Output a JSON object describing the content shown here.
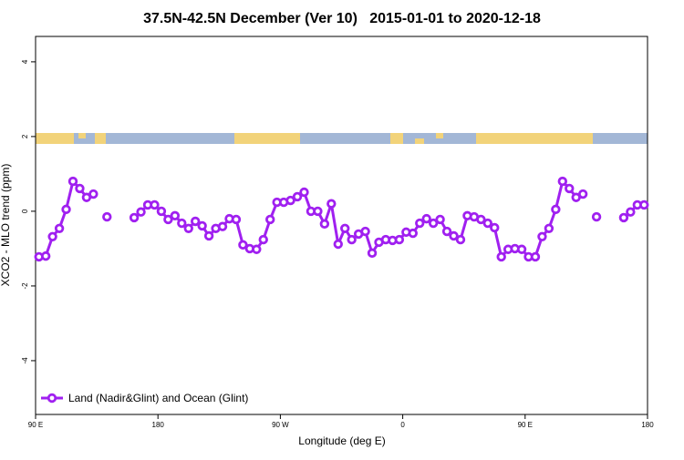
{
  "chart_data": {
    "type": "line",
    "title": "37.5N-42.5N December (Ver 10)   2015-01-01 to 2020-12-18",
    "x_label": "Longitude (deg E)",
    "y_label": "XCO2 - MLO trend (ppm)",
    "x": [
      92.5,
      97.5,
      102.5,
      107.5,
      112.5,
      117.5,
      122.5,
      127.5,
      132.5,
      137.5,
      142.5,
      147.5,
      152.5,
      157.5,
      162.5,
      167.5,
      172.5,
      177.5,
      182.5,
      187.5,
      192.5,
      197.5,
      202.5,
      207.5,
      212.5,
      217.5,
      222.5,
      227.5,
      232.5,
      237.5,
      242.5,
      247.5,
      252.5,
      257.5,
      262.5,
      267.5,
      272.5,
      277.5,
      282.5,
      287.5,
      292.5,
      297.5,
      302.5,
      307.5,
      312.5,
      317.5,
      322.5,
      327.5,
      332.5,
      337.5,
      342.5,
      347.5,
      352.5,
      357.5,
      362.5,
      367.5,
      372.5,
      377.5,
      382.5,
      387.5,
      392.5,
      397.5,
      402.5,
      407.5,
      412.5,
      417.5,
      422.5,
      427.5,
      432.5,
      437.5,
      442.5,
      447.5,
      452.5,
      457.5,
      462.5,
      467.5,
      472.5,
      477.5,
      482.5,
      487.5,
      492.5,
      497.5,
      502.5,
      507.5,
      512.5,
      517.5,
      522.5,
      527.5,
      532.5,
      537.5
    ],
    "series": [
      {
        "name": "Land (Nadir&Glint) and Ocean (Glint)",
        "color": "#a020f0",
        "values": [
          -1.22,
          -1.2,
          -0.68,
          -0.46,
          0.05,
          0.8,
          0.61,
          0.37,
          0.46,
          null,
          -0.15,
          null,
          null,
          null,
          -0.17,
          -0.02,
          0.17,
          0.17,
          0,
          -0.22,
          -0.12,
          -0.32,
          -0.46,
          -0.27,
          -0.39,
          -0.66,
          -0.46,
          -0.41,
          -0.2,
          -0.22,
          -0.9,
          -1.0,
          -1.02,
          -0.76,
          -0.22,
          0.24,
          0.24,
          0.29,
          0.39,
          0.51,
          0,
          0,
          -0.34,
          0.2,
          -0.88,
          -0.46,
          -0.76,
          -0.61,
          -0.54,
          -1.12,
          -0.83,
          -0.76,
          -0.78,
          -0.76,
          -0.56,
          -0.59,
          -0.32,
          -0.2,
          -0.32,
          -0.22,
          -0.54,
          -0.66,
          -0.76,
          -0.12,
          -0.15,
          -0.22,
          -0.32,
          -0.44,
          -1.22,
          -1.02,
          -1.0,
          -1.02,
          -1.22,
          -1.22,
          -0.68,
          -0.46,
          0.05,
          0.8,
          0.61,
          0.37,
          0.46,
          null,
          -0.15,
          null,
          null,
          null,
          -0.17,
          -0.02,
          0.17,
          0.17
        ]
      }
    ],
    "xlim": [
      90,
      540
    ],
    "xticks": [
      {
        "value": 90,
        "label": "90 E"
      },
      180,
      {
        "value": 270,
        "label": "90 W"
      },
      {
        "value": 360,
        "label": "0"
      },
      {
        "value": 450,
        "label": "90 E"
      },
      {
        "value": 540,
        "label": "180"
      }
    ],
    "ylim": [
      -5.44,
      4.68
    ],
    "yticks": [
      -4,
      -2,
      0,
      2,
      4
    ],
    "legend": "bottom-left"
  }
}
